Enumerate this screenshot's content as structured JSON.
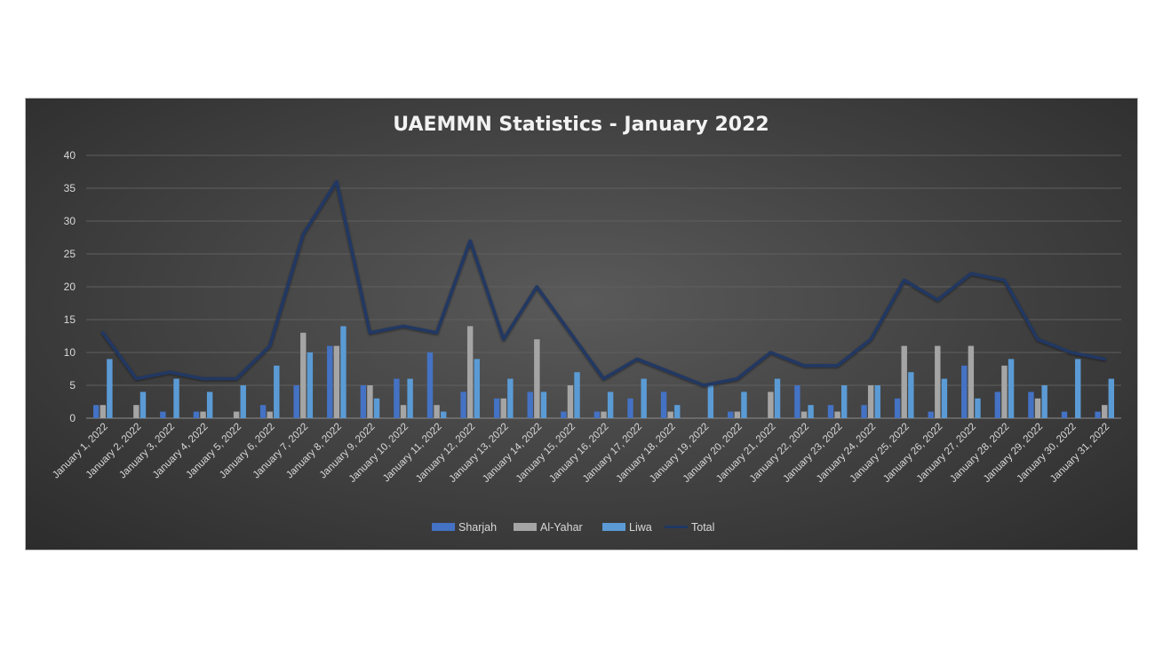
{
  "chart_data": {
    "type": "bar",
    "title": "UAEMMN  Statistics - January 2022",
    "ylim": [
      0,
      40
    ],
    "yticks": [
      0,
      5,
      10,
      15,
      20,
      25,
      30,
      35,
      40
    ],
    "grid": true,
    "legend_position": "bottom",
    "categories": [
      "January 1, 2022",
      "January 2, 2022",
      "January 3, 2022",
      "January 4, 2022",
      "January 5, 2022",
      "January 6, 2022",
      "January 7, 2022",
      "January 8, 2022",
      "January 9, 2022",
      "January 10, 2022",
      "January 11, 2022",
      "January 12, 2022",
      "January 13, 2022",
      "January 14, 2022",
      "January 15, 2022",
      "January 16, 2022",
      "January 17, 2022",
      "January 18, 2022",
      "January 19, 2022",
      "January 20, 2022",
      "January 21, 2022",
      "January 22, 2022",
      "January 23, 2022",
      "January 24, 2022",
      "January 25, 2022",
      "January 26, 2022",
      "January 27, 2022",
      "January 28, 2022",
      "January 29, 2022",
      "January 30, 2022",
      "January 31, 2022"
    ],
    "series": [
      {
        "name": "Sharjah",
        "kind": "bar",
        "color": "#4472c4",
        "values": [
          2,
          0,
          1,
          1,
          0,
          2,
          5,
          11,
          5,
          6,
          10,
          4,
          3,
          4,
          1,
          1,
          3,
          4,
          0,
          1,
          0,
          5,
          2,
          2,
          3,
          1,
          8,
          4,
          4,
          1,
          1
        ]
      },
      {
        "name": "Al-Yahar",
        "kind": "bar",
        "color": "#a5a5a5",
        "values": [
          2,
          2,
          0,
          1,
          1,
          1,
          13,
          11,
          5,
          2,
          2,
          14,
          3,
          12,
          5,
          1,
          0,
          1,
          0,
          1,
          4,
          1,
          1,
          5,
          11,
          11,
          11,
          8,
          3,
          0,
          2
        ]
      },
      {
        "name": "Liwa",
        "kind": "bar",
        "color": "#5b9bd5",
        "values": [
          9,
          4,
          6,
          4,
          5,
          8,
          10,
          14,
          3,
          6,
          1,
          9,
          6,
          4,
          7,
          4,
          6,
          2,
          5,
          4,
          6,
          2,
          5,
          5,
          7,
          6,
          3,
          9,
          5,
          9,
          6
        ]
      },
      {
        "name": "Total",
        "kind": "line",
        "color": "#203864",
        "values": [
          13,
          6,
          7,
          6,
          6,
          11,
          28,
          36,
          13,
          14,
          13,
          27,
          12,
          20,
          13,
          6,
          9,
          7,
          5,
          6,
          10,
          8,
          8,
          12,
          21,
          18,
          22,
          21,
          12,
          10,
          9
        ]
      }
    ]
  }
}
